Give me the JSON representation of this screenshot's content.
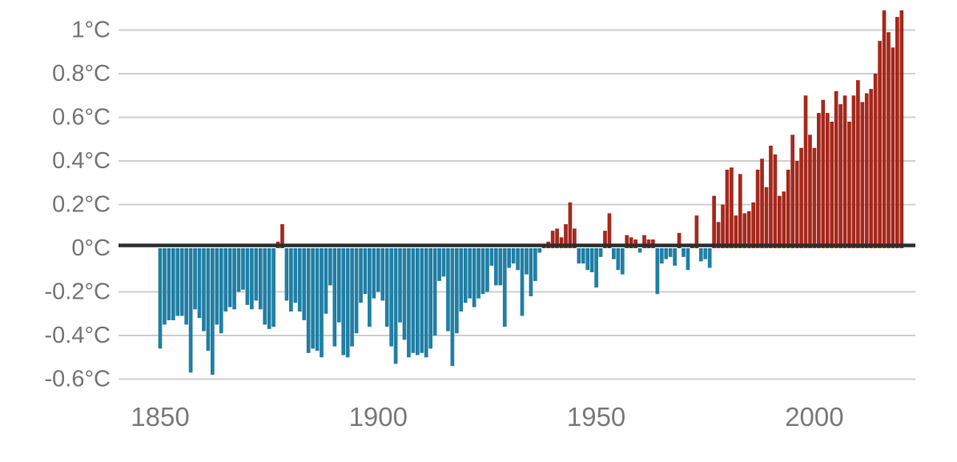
{
  "chart_data": {
    "type": "bar",
    "title": "",
    "xlabel": "",
    "ylabel": "",
    "unit": "°C",
    "start_year": 1850,
    "end_year": 2020,
    "values": [
      -0.46,
      -0.35,
      -0.33,
      -0.33,
      -0.31,
      -0.31,
      -0.35,
      -0.57,
      -0.28,
      -0.32,
      -0.38,
      -0.47,
      -0.58,
      -0.35,
      -0.39,
      -0.29,
      -0.27,
      -0.28,
      -0.2,
      -0.19,
      -0.26,
      -0.28,
      -0.24,
      -0.28,
      -0.35,
      -0.37,
      -0.36,
      0.03,
      0.11,
      -0.24,
      -0.29,
      -0.25,
      -0.29,
      -0.33,
      -0.48,
      -0.46,
      -0.47,
      -0.5,
      -0.3,
      -0.17,
      -0.45,
      -0.34,
      -0.49,
      -0.5,
      -0.45,
      -0.39,
      -0.25,
      -0.21,
      -0.36,
      -0.23,
      -0.2,
      -0.24,
      -0.36,
      -0.45,
      -0.53,
      -0.34,
      -0.42,
      -0.5,
      -0.48,
      -0.49,
      -0.48,
      -0.5,
      -0.46,
      -0.4,
      -0.15,
      -0.13,
      -0.38,
      -0.54,
      -0.39,
      -0.29,
      -0.25,
      -0.23,
      -0.27,
      -0.23,
      -0.21,
      -0.2,
      -0.08,
      -0.17,
      -0.17,
      -0.36,
      -0.09,
      -0.07,
      -0.1,
      -0.31,
      -0.12,
      -0.22,
      -0.15,
      -0.02,
      0.02,
      0.03,
      0.08,
      0.09,
      0.05,
      0.11,
      0.21,
      0.09,
      -0.07,
      -0.07,
      -0.1,
      -0.11,
      -0.18,
      -0.04,
      0.08,
      0.16,
      -0.05,
      -0.1,
      -0.12,
      0.06,
      0.05,
      0.04,
      -0.02,
      0.06,
      0.04,
      0.04,
      -0.21,
      -0.07,
      -0.05,
      -0.04,
      -0.08,
      0.07,
      -0.04,
      -0.1,
      0.02,
      0.15,
      -0.06,
      -0.05,
      -0.09,
      0.24,
      0.12,
      0.2,
      0.36,
      0.37,
      0.15,
      0.34,
      0.16,
      0.17,
      0.21,
      0.36,
      0.41,
      0.28,
      0.47,
      0.43,
      0.24,
      0.26,
      0.36,
      0.52,
      0.4,
      0.46,
      0.7,
      0.52,
      0.46,
      0.62,
      0.68,
      0.62,
      0.58,
      0.72,
      0.66,
      0.7,
      0.58,
      0.7,
      0.77,
      0.67,
      0.71,
      0.73,
      0.8,
      0.95,
      1.09,
      0.99,
      0.92,
      1.06,
      1.09
    ],
    "y_ticks": [
      {
        "value": 1.0,
        "label": "1°C"
      },
      {
        "value": 0.8,
        "label": "0.8°C"
      },
      {
        "value": 0.6,
        "label": "0.6°C"
      },
      {
        "value": 0.4,
        "label": "0.4°C"
      },
      {
        "value": 0.2,
        "label": "0.2°C"
      },
      {
        "value": 0.0,
        "label": "0°C"
      },
      {
        "value": -0.2,
        "label": "-0.2°C"
      },
      {
        "value": -0.4,
        "label": "-0.4°C"
      },
      {
        "value": -0.6,
        "label": "-0.6°C"
      }
    ],
    "x_ticks": [
      {
        "year": 1850,
        "label": "1850"
      },
      {
        "year": 1900,
        "label": "1900"
      },
      {
        "year": 1950,
        "label": "1950"
      },
      {
        "year": 2000,
        "label": "2000"
      }
    ],
    "ylim": [
      -0.6,
      1.1
    ],
    "grid": true,
    "legend": "none",
    "colors": {
      "positive_bar": "#a5291d",
      "negative_bar": "#217fa4",
      "zero_line": "#2d2d2d",
      "gridline": "#cfcfcf",
      "tick_label": "#757575",
      "background": "#ffffff"
    }
  }
}
